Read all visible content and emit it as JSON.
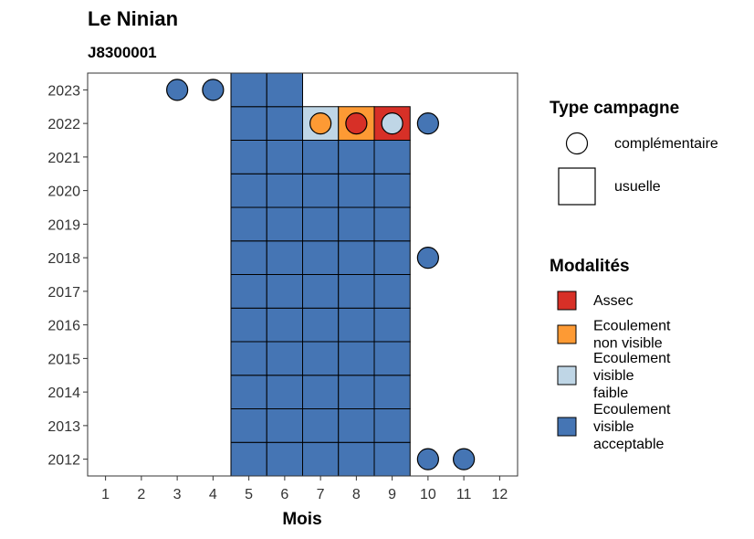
{
  "title": "Le Ninian",
  "subtitle": "J8300001",
  "chart_data": {
    "type": "heatmap",
    "title": "Le Ninian",
    "subtitle": "J8300001",
    "xlabel": "Mois",
    "ylabel": "",
    "x_ticks": [
      "1",
      "2",
      "3",
      "4",
      "5",
      "6",
      "7",
      "8",
      "9",
      "10",
      "11",
      "12"
    ],
    "y_ticks": [
      "2012",
      "2013",
      "2014",
      "2015",
      "2016",
      "2017",
      "2018",
      "2019",
      "2020",
      "2021",
      "2022",
      "2023"
    ],
    "xlim": [
      0.5,
      12.5
    ],
    "ylim": [
      2011.5,
      2023.5
    ],
    "grid": false,
    "legend_position": "right",
    "colors": {
      "Assec": "#d73027",
      "Ecoulement non visible": "#fd9a34",
      "Ecoulement visible faible": "#bfd6e6",
      "Ecoulement visible acceptable": "#4575b4"
    },
    "legend_type": {
      "title": "Type campagne",
      "items": [
        {
          "label": "complémentaire",
          "shape": "circle"
        },
        {
          "label": "usuelle",
          "shape": "square"
        }
      ]
    },
    "legend_modalites": {
      "title": "Modalités",
      "items": [
        {
          "key": "Assec",
          "lines": [
            "Assec"
          ]
        },
        {
          "key": "Ecoulement non visible",
          "lines": [
            "Ecoulement",
            "non visible"
          ]
        },
        {
          "key": "Ecoulement visible faible",
          "lines": [
            "Ecoulement",
            "visible",
            "faible"
          ]
        },
        {
          "key": "Ecoulement visible acceptable",
          "lines": [
            "Ecoulement",
            "visible",
            "acceptable"
          ]
        }
      ]
    },
    "points": [
      {
        "year": 2012,
        "month": 5,
        "type": "usuelle",
        "modalite": "Ecoulement visible acceptable"
      },
      {
        "year": 2012,
        "month": 6,
        "type": "usuelle",
        "modalite": "Ecoulement visible acceptable"
      },
      {
        "year": 2012,
        "month": 7,
        "type": "usuelle",
        "modalite": "Ecoulement visible acceptable"
      },
      {
        "year": 2012,
        "month": 8,
        "type": "usuelle",
        "modalite": "Ecoulement visible acceptable"
      },
      {
        "year": 2012,
        "month": 9,
        "type": "usuelle",
        "modalite": "Ecoulement visible acceptable"
      },
      {
        "year": 2012,
        "month": 10,
        "type": "complémentaire",
        "modalite": "Ecoulement visible acceptable"
      },
      {
        "year": 2012,
        "month": 11,
        "type": "complémentaire",
        "modalite": "Ecoulement visible acceptable"
      },
      {
        "year": 2013,
        "month": 5,
        "type": "usuelle",
        "modalite": "Ecoulement visible acceptable"
      },
      {
        "year": 2013,
        "month": 6,
        "type": "usuelle",
        "modalite": "Ecoulement visible acceptable"
      },
      {
        "year": 2013,
        "month": 7,
        "type": "usuelle",
        "modalite": "Ecoulement visible acceptable"
      },
      {
        "year": 2013,
        "month": 8,
        "type": "usuelle",
        "modalite": "Ecoulement visible acceptable"
      },
      {
        "year": 2013,
        "month": 9,
        "type": "usuelle",
        "modalite": "Ecoulement visible acceptable"
      },
      {
        "year": 2014,
        "month": 5,
        "type": "usuelle",
        "modalite": "Ecoulement visible acceptable"
      },
      {
        "year": 2014,
        "month": 6,
        "type": "usuelle",
        "modalite": "Ecoulement visible acceptable"
      },
      {
        "year": 2014,
        "month": 7,
        "type": "usuelle",
        "modalite": "Ecoulement visible acceptable"
      },
      {
        "year": 2014,
        "month": 8,
        "type": "usuelle",
        "modalite": "Ecoulement visible acceptable"
      },
      {
        "year": 2014,
        "month": 9,
        "type": "usuelle",
        "modalite": "Ecoulement visible acceptable"
      },
      {
        "year": 2015,
        "month": 5,
        "type": "usuelle",
        "modalite": "Ecoulement visible acceptable"
      },
      {
        "year": 2015,
        "month": 6,
        "type": "usuelle",
        "modalite": "Ecoulement visible acceptable"
      },
      {
        "year": 2015,
        "month": 7,
        "type": "usuelle",
        "modalite": "Ecoulement visible acceptable"
      },
      {
        "year": 2015,
        "month": 8,
        "type": "usuelle",
        "modalite": "Ecoulement visible acceptable"
      },
      {
        "year": 2015,
        "month": 9,
        "type": "usuelle",
        "modalite": "Ecoulement visible acceptable"
      },
      {
        "year": 2016,
        "month": 5,
        "type": "usuelle",
        "modalite": "Ecoulement visible acceptable"
      },
      {
        "year": 2016,
        "month": 6,
        "type": "usuelle",
        "modalite": "Ecoulement visible acceptable"
      },
      {
        "year": 2016,
        "month": 7,
        "type": "usuelle",
        "modalite": "Ecoulement visible acceptable"
      },
      {
        "year": 2016,
        "month": 8,
        "type": "usuelle",
        "modalite": "Ecoulement visible acceptable"
      },
      {
        "year": 2016,
        "month": 9,
        "type": "usuelle",
        "modalite": "Ecoulement visible acceptable"
      },
      {
        "year": 2017,
        "month": 5,
        "type": "usuelle",
        "modalite": "Ecoulement visible acceptable"
      },
      {
        "year": 2017,
        "month": 6,
        "type": "usuelle",
        "modalite": "Ecoulement visible acceptable"
      },
      {
        "year": 2017,
        "month": 7,
        "type": "usuelle",
        "modalite": "Ecoulement visible acceptable"
      },
      {
        "year": 2017,
        "month": 8,
        "type": "usuelle",
        "modalite": "Ecoulement visible acceptable"
      },
      {
        "year": 2017,
        "month": 9,
        "type": "usuelle",
        "modalite": "Ecoulement visible acceptable"
      },
      {
        "year": 2018,
        "month": 5,
        "type": "usuelle",
        "modalite": "Ecoulement visible acceptable"
      },
      {
        "year": 2018,
        "month": 6,
        "type": "usuelle",
        "modalite": "Ecoulement visible acceptable"
      },
      {
        "year": 2018,
        "month": 7,
        "type": "usuelle",
        "modalite": "Ecoulement visible acceptable"
      },
      {
        "year": 2018,
        "month": 8,
        "type": "usuelle",
        "modalite": "Ecoulement visible acceptable"
      },
      {
        "year": 2018,
        "month": 9,
        "type": "usuelle",
        "modalite": "Ecoulement visible acceptable"
      },
      {
        "year": 2018,
        "month": 10,
        "type": "complémentaire",
        "modalite": "Ecoulement visible acceptable"
      },
      {
        "year": 2019,
        "month": 5,
        "type": "usuelle",
        "modalite": "Ecoulement visible acceptable"
      },
      {
        "year": 2019,
        "month": 6,
        "type": "usuelle",
        "modalite": "Ecoulement visible acceptable"
      },
      {
        "year": 2019,
        "month": 7,
        "type": "usuelle",
        "modalite": "Ecoulement visible acceptable"
      },
      {
        "year": 2019,
        "month": 8,
        "type": "usuelle",
        "modalite": "Ecoulement visible acceptable"
      },
      {
        "year": 2019,
        "month": 9,
        "type": "usuelle",
        "modalite": "Ecoulement visible acceptable"
      },
      {
        "year": 2020,
        "month": 5,
        "type": "usuelle",
        "modalite": "Ecoulement visible acceptable"
      },
      {
        "year": 2020,
        "month": 6,
        "type": "usuelle",
        "modalite": "Ecoulement visible acceptable"
      },
      {
        "year": 2020,
        "month": 7,
        "type": "usuelle",
        "modalite": "Ecoulement visible acceptable"
      },
      {
        "year": 2020,
        "month": 8,
        "type": "usuelle",
        "modalite": "Ecoulement visible acceptable"
      },
      {
        "year": 2020,
        "month": 9,
        "type": "usuelle",
        "modalite": "Ecoulement visible acceptable"
      },
      {
        "year": 2021,
        "month": 5,
        "type": "usuelle",
        "modalite": "Ecoulement visible acceptable"
      },
      {
        "year": 2021,
        "month": 6,
        "type": "usuelle",
        "modalite": "Ecoulement visible acceptable"
      },
      {
        "year": 2021,
        "month": 7,
        "type": "usuelle",
        "modalite": "Ecoulement visible acceptable"
      },
      {
        "year": 2021,
        "month": 8,
        "type": "usuelle",
        "modalite": "Ecoulement visible acceptable"
      },
      {
        "year": 2021,
        "month": 9,
        "type": "usuelle",
        "modalite": "Ecoulement visible acceptable"
      },
      {
        "year": 2022,
        "month": 5,
        "type": "usuelle",
        "modalite": "Ecoulement visible acceptable"
      },
      {
        "year": 2022,
        "month": 6,
        "type": "usuelle",
        "modalite": "Ecoulement visible acceptable"
      },
      {
        "year": 2022,
        "month": 7,
        "type": "usuelle",
        "modalite": "Ecoulement visible faible"
      },
      {
        "year": 2022,
        "month": 8,
        "type": "usuelle",
        "modalite": "Ecoulement non visible"
      },
      {
        "year": 2022,
        "month": 9,
        "type": "usuelle",
        "modalite": "Assec"
      },
      {
        "year": 2022,
        "month": 7,
        "type": "complémentaire",
        "modalite": "Ecoulement non visible"
      },
      {
        "year": 2022,
        "month": 8,
        "type": "complémentaire",
        "modalite": "Assec"
      },
      {
        "year": 2022,
        "month": 9,
        "type": "complémentaire",
        "modalite": "Ecoulement visible faible"
      },
      {
        "year": 2022,
        "month": 10,
        "type": "complémentaire",
        "modalite": "Ecoulement visible acceptable"
      },
      {
        "year": 2023,
        "month": 3,
        "type": "complémentaire",
        "modalite": "Ecoulement visible acceptable"
      },
      {
        "year": 2023,
        "month": 4,
        "type": "complémentaire",
        "modalite": "Ecoulement visible acceptable"
      },
      {
        "year": 2023,
        "month": 5,
        "type": "usuelle",
        "modalite": "Ecoulement visible acceptable"
      },
      {
        "year": 2023,
        "month": 6,
        "type": "usuelle",
        "modalite": "Ecoulement visible acceptable"
      }
    ]
  }
}
